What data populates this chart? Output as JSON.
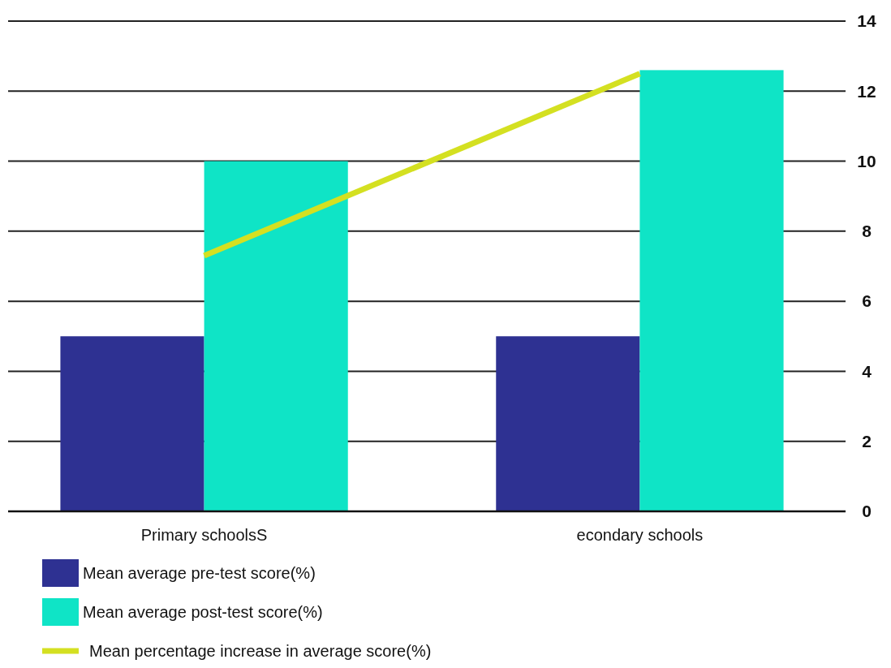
{
  "chart_data": {
    "type": "bar",
    "categories": [
      "Primary schoolsS",
      "econdary schools"
    ],
    "series": [
      {
        "name": "Mean average pre-test score(%)",
        "color": "#2e3192",
        "values": [
          5,
          5
        ]
      },
      {
        "name": "Mean average post-test score(%)",
        "color": "#0fe4c6",
        "values": [
          10,
          12.6
        ]
      },
      {
        "name": "Mean percentage increase in average score(%)",
        "type": "line",
        "color": "#d4e021",
        "values": [
          7.3,
          12.5
        ]
      }
    ],
    "ylim": [
      0,
      14
    ],
    "yticks": [
      0,
      2,
      4,
      6,
      8,
      10,
      12,
      14
    ],
    "grid": "y",
    "legend": "bottom"
  }
}
